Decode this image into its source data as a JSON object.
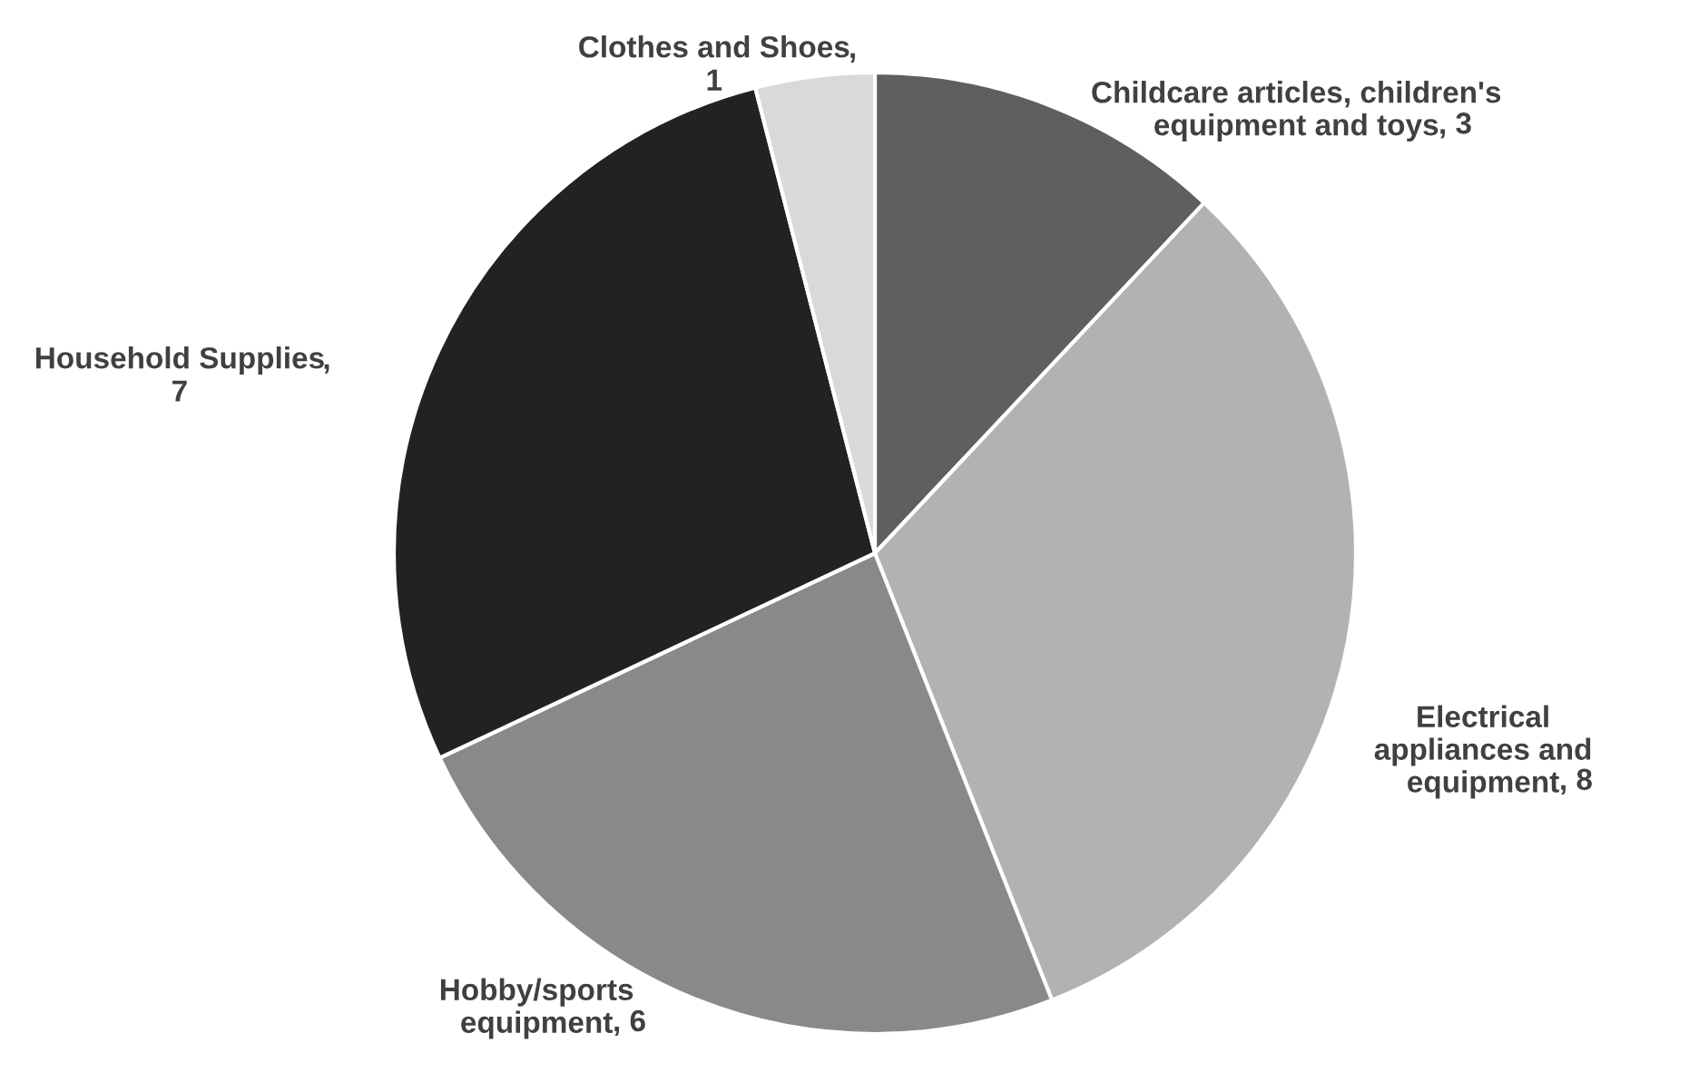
{
  "chart_data": {
    "type": "pie",
    "categories": [
      "Childcare articles, children's equipment and toys",
      "Electrical appliances and equipment",
      "Hobby/sports equipment",
      "Household Supplies",
      "Clothes and Shoes"
    ],
    "values": [
      3,
      8,
      6,
      7,
      1
    ],
    "colors": [
      "#5f5f5f",
      "#b2b2b2",
      "#898989",
      "#222222",
      "#d9d9d9"
    ],
    "value_labels": [
      ", 3",
      ", 8",
      ", 6",
      ", 7",
      ", 1"
    ],
    "legend": false
  }
}
